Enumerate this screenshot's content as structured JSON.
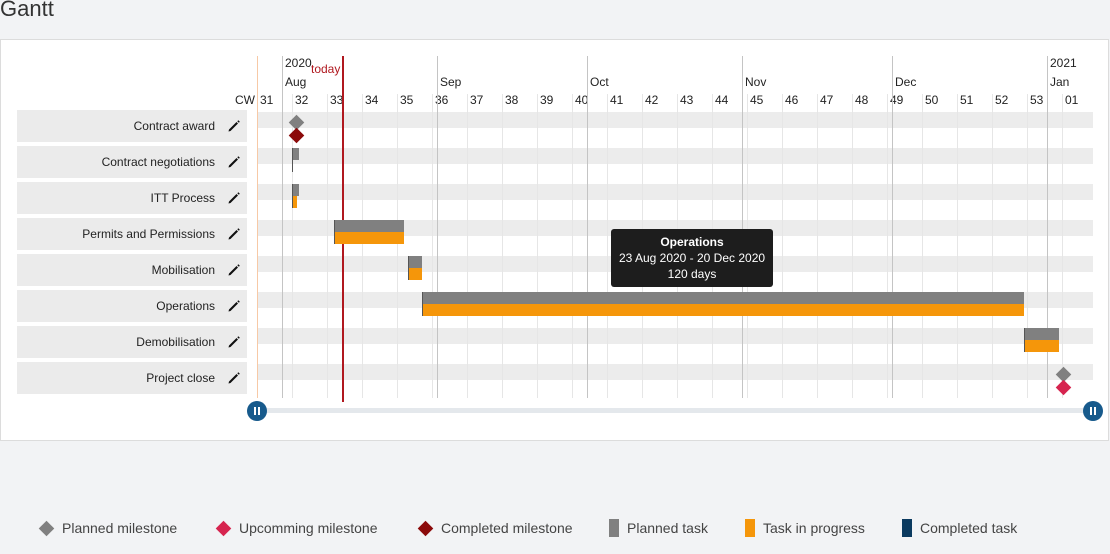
{
  "page": {
    "title": "Gantt"
  },
  "timeline": {
    "cw_label": "CW",
    "today_label": "today",
    "years": [
      "2020",
      "2021"
    ],
    "months": [
      "Aug",
      "Sep",
      "Oct",
      "Nov",
      "Dec",
      "Jan"
    ],
    "weeks": [
      "31",
      "32",
      "33",
      "34",
      "35",
      "36",
      "37",
      "38",
      "39",
      "40",
      "41",
      "42",
      "43",
      "44",
      "45",
      "46",
      "47",
      "48",
      "49",
      "50",
      "51",
      "52",
      "53",
      "01"
    ]
  },
  "tasks": [
    {
      "label": "Contract award",
      "kind": "milestone",
      "week": 32
    },
    {
      "label": "Contract negotiations",
      "kind": "task",
      "start_week": 32,
      "end_week": 32.2,
      "progress_end_week": null
    },
    {
      "label": "ITT Process",
      "kind": "task",
      "start_week": 32,
      "end_week": 32.2,
      "progress_end_week": 32.15
    },
    {
      "label": "Permits and Permissions",
      "kind": "task",
      "start_week": 33.2,
      "end_week": 35.2,
      "progress_end_week": 35.2
    },
    {
      "label": "Mobilisation",
      "kind": "task",
      "start_week": 35.3,
      "end_week": 35.7,
      "progress_end_week": 35.7
    },
    {
      "label": "Operations",
      "kind": "task",
      "start_week": 35.7,
      "end_week": 52.9,
      "progress_end_week": 52.9
    },
    {
      "label": "Demobilisation",
      "kind": "task",
      "start_week": 52.9,
      "end_week": 53.9,
      "progress_end_week": 53.9
    },
    {
      "label": "Project close",
      "kind": "milestone",
      "week": 53.9
    }
  ],
  "tooltip": {
    "title": "Operations",
    "range": "23 Aug 2020 - 20 Dec 2020",
    "duration": "120 days"
  },
  "legend": [
    {
      "label": "Planned milestone",
      "shape": "diamond",
      "color": "#808080"
    },
    {
      "label": "Upcomming milestone",
      "shape": "diamond",
      "color": "#d6244f"
    },
    {
      "label": "Completed milestone",
      "shape": "diamond",
      "color": "#8b0a0a"
    },
    {
      "label": "Planned task",
      "shape": "bar",
      "color": "#808080"
    },
    {
      "label": "Task in progress",
      "shape": "bar",
      "color": "#f5960a"
    },
    {
      "label": "Completed task",
      "shape": "bar",
      "color": "#0b3a5f"
    }
  ],
  "colors": {
    "planned": "#808080",
    "progress": "#f5960a",
    "completed_milestone": "#8b0a0a",
    "upcoming_milestone": "#d6244f",
    "today": "#b0181f",
    "handle": "#175a8c"
  }
}
